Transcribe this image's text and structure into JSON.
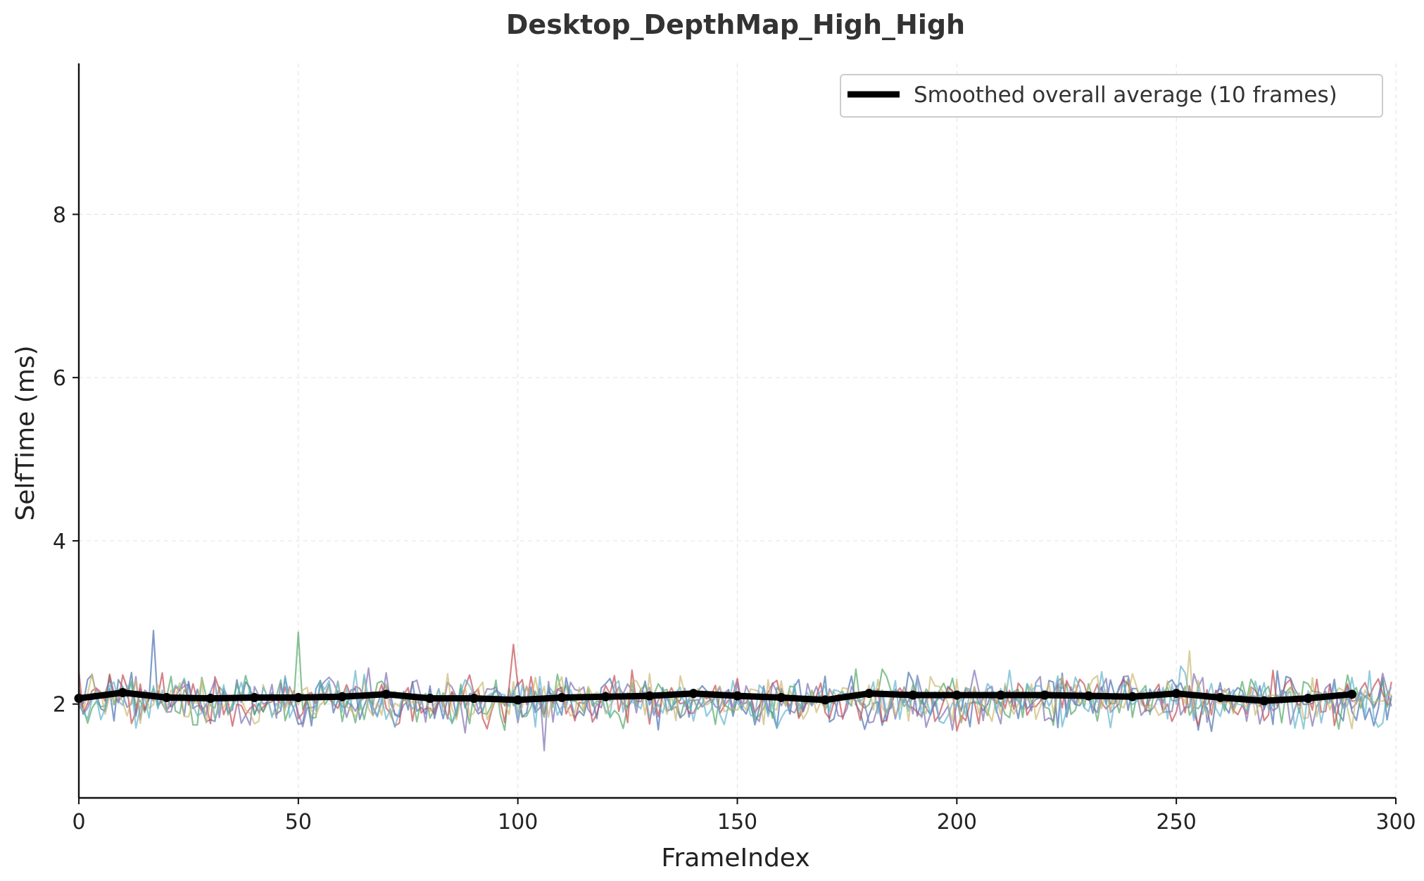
{
  "chart_data": {
    "type": "line",
    "title": "Desktop_DepthMap_High_High",
    "xlabel": "FrameIndex",
    "ylabel": "SelfTime (ms)",
    "xlim": [
      0,
      300
    ],
    "ylim": [
      0.85,
      9.85
    ],
    "xticks": [
      0,
      50,
      100,
      150,
      200,
      250,
      300
    ],
    "yticks": [
      2,
      4,
      6,
      8
    ],
    "grid": true,
    "legend_position": "top-right",
    "raw_series": {
      "count": 6,
      "colors": [
        "#4c72b0",
        "#55a868",
        "#c44e52",
        "#8172b2",
        "#ccb974",
        "#64b5cd"
      ],
      "frames": 300,
      "typical_range": [
        1.6,
        2.5
      ],
      "spikes": [
        {
          "x": 17,
          "y": 2.9
        },
        {
          "x": 50,
          "y": 2.88
        },
        {
          "x": 99,
          "y": 2.73
        },
        {
          "x": 106,
          "y": 1.43
        },
        {
          "x": 253,
          "y": 2.65
        }
      ]
    },
    "series": [
      {
        "name": "Smoothed overall average (10 frames)",
        "color": "#000000",
        "x": [
          0,
          10,
          20,
          30,
          40,
          50,
          60,
          70,
          80,
          90,
          100,
          110,
          120,
          130,
          140,
          150,
          160,
          170,
          180,
          190,
          200,
          210,
          220,
          230,
          240,
          250,
          260,
          270,
          280,
          290
        ],
        "y": [
          2.07,
          2.14,
          2.08,
          2.07,
          2.08,
          2.08,
          2.09,
          2.12,
          2.07,
          2.07,
          2.05,
          2.08,
          2.09,
          2.1,
          2.13,
          2.1,
          2.08,
          2.05,
          2.13,
          2.11,
          2.11,
          2.11,
          2.11,
          2.1,
          2.09,
          2.13,
          2.08,
          2.04,
          2.07,
          2.12
        ]
      }
    ]
  }
}
